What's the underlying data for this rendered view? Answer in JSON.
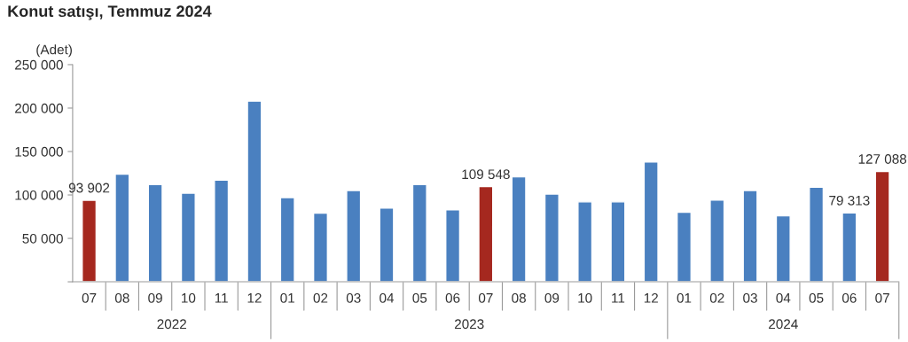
{
  "chart_data": {
    "type": "bar",
    "title": "Konut satışı, Temmuz 2024",
    "ylabel": "(Adet)",
    "categories": [
      "07",
      "08",
      "09",
      "10",
      "11",
      "12",
      "01",
      "02",
      "03",
      "04",
      "05",
      "06",
      "07",
      "08",
      "09",
      "10",
      "11",
      "12",
      "01",
      "02",
      "03",
      "04",
      "05",
      "06",
      "07"
    ],
    "values": [
      93902,
      124000,
      112000,
      102000,
      117000,
      208000,
      97000,
      79000,
      105000,
      85000,
      112000,
      83000,
      109548,
      121000,
      101000,
      92000,
      92000,
      138000,
      80000,
      94000,
      105000,
      76000,
      109000,
      79313,
      127088
    ],
    "colors": [
      "#a5281f",
      "#4a80c0",
      "#4a80c0",
      "#4a80c0",
      "#4a80c0",
      "#4a80c0",
      "#4a80c0",
      "#4a80c0",
      "#4a80c0",
      "#4a80c0",
      "#4a80c0",
      "#4a80c0",
      "#a5281f",
      "#4a80c0",
      "#4a80c0",
      "#4a80c0",
      "#4a80c0",
      "#4a80c0",
      "#4a80c0",
      "#4a80c0",
      "#4a80c0",
      "#4a80c0",
      "#4a80c0",
      "#4a80c0",
      "#a5281f"
    ],
    "value_labels": [
      "93 902",
      null,
      null,
      null,
      null,
      null,
      null,
      null,
      null,
      null,
      null,
      null,
      "109 548",
      null,
      null,
      null,
      null,
      null,
      null,
      null,
      null,
      null,
      null,
      "79 313",
      "127 088"
    ],
    "annotations": [
      "2022",
      "2023",
      "2024"
    ],
    "ylim": [
      0,
      250000
    ],
    "yticks": [
      {
        "value": 0,
        "label": null
      },
      {
        "value": 50000,
        "label": "50 000"
      },
      {
        "value": 100000,
        "label": "100 000"
      },
      {
        "value": 150000,
        "label": "150 000"
      },
      {
        "value": 200000,
        "label": "200 000"
      },
      {
        "value": 250000,
        "label": "250 000"
      }
    ],
    "grid": false,
    "legend": false
  }
}
